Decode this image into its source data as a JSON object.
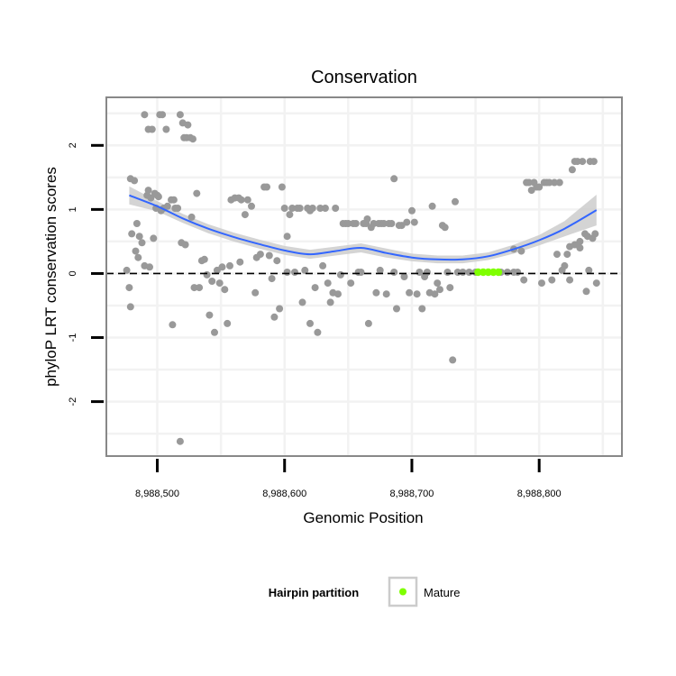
{
  "chart_data": {
    "type": "scatter",
    "title": "Conservation",
    "xlabel": "Genomic Position",
    "ylabel": "phyloP LRT conservation scores",
    "xlim": [
      8988460,
      8988865
    ],
    "ylim": [
      -2.85,
      2.75
    ],
    "x_ticks": [
      8988500,
      8988600,
      8988700,
      8988800
    ],
    "x_tick_labels": [
      "8,988,500",
      "8,988,600",
      "8,988,700",
      "8,988,800"
    ],
    "y_ticks": [
      -2,
      -1,
      0,
      1,
      2
    ],
    "y_tick_labels": [
      "-2",
      "-1",
      "0",
      "1",
      "2"
    ],
    "reference_line": {
      "y": 0,
      "style": "dashed"
    },
    "grid": true,
    "colors": {
      "points": "#999999",
      "smooth_line": "#3366ff",
      "confidence_band": "#cccccc",
      "mature": "#7fff00",
      "panel_border": "#888888",
      "grid": "#f2f2f2"
    },
    "legend": {
      "title": "Hairpin partition",
      "placement": "bottom",
      "entries": [
        {
          "label": "Mature",
          "color": "#7fff00"
        }
      ]
    },
    "series": [
      {
        "name": "Conservation score",
        "points": [
          [
            8988479,
            1.48
          ],
          [
            8988482,
            1.45
          ],
          [
            8988476,
            0.05
          ],
          [
            8988478,
            -0.22
          ],
          [
            8988479,
            -0.52
          ],
          [
            8988480,
            0.62
          ],
          [
            8988483,
            0.35
          ],
          [
            8988484,
            0.78
          ],
          [
            8988486,
            0.58
          ],
          [
            8988485,
            0.25
          ],
          [
            8988488,
            0.48
          ],
          [
            8988490,
            0.12
          ],
          [
            8988492,
            1.22
          ],
          [
            8988493,
            1.3
          ],
          [
            8988495,
            1.18
          ],
          [
            8988494,
            0.1
          ],
          [
            8988497,
            0.55
          ],
          [
            8988490,
            2.48
          ],
          [
            8988493,
            2.25
          ],
          [
            8988496,
            2.25
          ],
          [
            8988502,
            2.48
          ],
          [
            8988504,
            2.48
          ],
          [
            8988507,
            2.25
          ],
          [
            8988498,
            1.25
          ],
          [
            8988500,
            1.22
          ],
          [
            8988501,
            1.2
          ],
          [
            8988499,
            1.02
          ],
          [
            8988503,
            0.98
          ],
          [
            8988505,
            1.02
          ],
          [
            8988508,
            1.05
          ],
          [
            8988511,
            1.15
          ],
          [
            8988513,
            1.15
          ],
          [
            8988514,
            1.02
          ],
          [
            8988516,
            1.02
          ],
          [
            8988512,
            -0.8
          ],
          [
            8988518,
            2.48
          ],
          [
            8988520,
            2.35
          ],
          [
            8988521,
            2.12
          ],
          [
            8988523,
            2.12
          ],
          [
            8988524,
            2.32
          ],
          [
            8988526,
            2.12
          ],
          [
            8988528,
            2.1
          ],
          [
            8988518,
            -2.62
          ],
          [
            8988519,
            0.48
          ],
          [
            8988522,
            0.45
          ],
          [
            8988527,
            0.88
          ],
          [
            8988529,
            -0.22
          ],
          [
            8988531,
            1.25
          ],
          [
            8988533,
            -0.22
          ],
          [
            8988535,
            0.2
          ],
          [
            8988537,
            0.22
          ],
          [
            8988539,
            -0.02
          ],
          [
            8988541,
            -0.65
          ],
          [
            8988543,
            -0.12
          ],
          [
            8988545,
            -0.92
          ],
          [
            8988547,
            0.05
          ],
          [
            8988549,
            -0.15
          ],
          [
            8988551,
            0.1
          ],
          [
            8988553,
            -0.25
          ],
          [
            8988555,
            -0.78
          ],
          [
            8988557,
            0.12
          ],
          [
            8988558,
            1.15
          ],
          [
            8988561,
            1.18
          ],
          [
            8988564,
            1.18
          ],
          [
            8988566,
            1.15
          ],
          [
            8988569,
            0.92
          ],
          [
            8988571,
            1.15
          ],
          [
            8988574,
            1.05
          ],
          [
            8988577,
            -0.3
          ],
          [
            8988578,
            0.25
          ],
          [
            8988581,
            0.3
          ],
          [
            8988584,
            1.35
          ],
          [
            8988586,
            1.35
          ],
          [
            8988588,
            0.28
          ],
          [
            8988590,
            -0.08
          ],
          [
            8988592,
            -0.68
          ],
          [
            8988594,
            0.2
          ],
          [
            8988596,
            -0.55
          ],
          [
            8988598,
            1.35
          ],
          [
            8988600,
            1.02
          ],
          [
            8988602,
            0.02
          ],
          [
            8988604,
            0.92
          ],
          [
            8988606,
            1.02
          ],
          [
            8988608,
            0.02
          ],
          [
            8988610,
            1.02
          ],
          [
            8988612,
            1.02
          ],
          [
            8988614,
            -0.45
          ],
          [
            8988616,
            0.05
          ],
          [
            8988618,
            1.02
          ],
          [
            8988620,
            -0.78
          ],
          [
            8988622,
            1.02
          ],
          [
            8988624,
            -0.22
          ],
          [
            8988626,
            -0.92
          ],
          [
            8988628,
            1.02
          ],
          [
            8988630,
            0.12
          ],
          [
            8988632,
            1.02
          ],
          [
            8988634,
            -0.15
          ],
          [
            8988636,
            -0.45
          ],
          [
            8988638,
            -0.3
          ],
          [
            8988640,
            1.02
          ],
          [
            8988642,
            -0.32
          ],
          [
            8988644,
            -0.02
          ],
          [
            8988646,
            0.78
          ],
          [
            8988648,
            0.78
          ],
          [
            8988650,
            0.78
          ],
          [
            8988652,
            -0.15
          ],
          [
            8988654,
            0.78
          ],
          [
            8988656,
            0.78
          ],
          [
            8988658,
            0.02
          ],
          [
            8988660,
            0.02
          ],
          [
            8988662,
            0.78
          ],
          [
            8988664,
            0.78
          ],
          [
            8988665,
            0.85
          ],
          [
            8988666,
            -0.78
          ],
          [
            8988668,
            0.72
          ],
          [
            8988670,
            0.78
          ],
          [
            8988672,
            -0.3
          ],
          [
            8988674,
            0.78
          ],
          [
            8988676,
            0.78
          ],
          [
            8988678,
            0.78
          ],
          [
            8988680,
            -0.32
          ],
          [
            8988682,
            0.78
          ],
          [
            8988684,
            0.78
          ],
          [
            8988686,
            0.02
          ],
          [
            8988688,
            -0.55
          ],
          [
            8988690,
            0.75
          ],
          [
            8988692,
            0.75
          ],
          [
            8988694,
            -0.05
          ],
          [
            8988696,
            0.8
          ],
          [
            8988698,
            -0.3
          ],
          [
            8988700,
            0.98
          ],
          [
            8988702,
            0.8
          ],
          [
            8988704,
            -0.32
          ],
          [
            8988706,
            0.02
          ],
          [
            8988708,
            -0.55
          ],
          [
            8988710,
            -0.05
          ],
          [
            8988712,
            0.02
          ],
          [
            8988714,
            -0.3
          ],
          [
            8988716,
            1.05
          ],
          [
            8988718,
            -0.32
          ],
          [
            8988720,
            -0.15
          ],
          [
            8988722,
            -0.25
          ],
          [
            8988724,
            0.75
          ],
          [
            8988726,
            0.72
          ],
          [
            8988728,
            0.02
          ],
          [
            8988730,
            -0.22
          ],
          [
            8988732,
            -1.35
          ],
          [
            8988734,
            1.12
          ],
          [
            8988736,
            0.02
          ],
          [
            8988740,
            0.02
          ],
          [
            8988745,
            0.02
          ],
          [
            8988750,
            0.02
          ],
          [
            8988770,
            0.02
          ],
          [
            8988775,
            0.02
          ],
          [
            8988780,
            0.02
          ],
          [
            8988783,
            0.02
          ],
          [
            8988786,
            0.35
          ],
          [
            8988788,
            -0.1
          ],
          [
            8988790,
            1.42
          ],
          [
            8988792,
            1.42
          ],
          [
            8988794,
            1.3
          ],
          [
            8988796,
            1.42
          ],
          [
            8988798,
            1.35
          ],
          [
            8988800,
            1.35
          ],
          [
            8988802,
            -0.15
          ],
          [
            8988804,
            1.42
          ],
          [
            8988806,
            1.42
          ],
          [
            8988808,
            1.42
          ],
          [
            8988810,
            -0.1
          ],
          [
            8988812,
            1.42
          ],
          [
            8988814,
            0.3
          ],
          [
            8988816,
            1.42
          ],
          [
            8988818,
            0.05
          ],
          [
            8988820,
            0.12
          ],
          [
            8988822,
            0.3
          ],
          [
            8988824,
            -0.1
          ],
          [
            8988826,
            1.62
          ],
          [
            8988828,
            1.75
          ],
          [
            8988830,
            1.75
          ],
          [
            8988832,
            0.5
          ],
          [
            8988834,
            1.75
          ],
          [
            8988836,
            0.62
          ],
          [
            8988837,
            -0.28
          ],
          [
            8988838,
            0.58
          ],
          [
            8988839,
            0.05
          ],
          [
            8988840,
            1.75
          ],
          [
            8988842,
            0.55
          ],
          [
            8988843,
            1.75
          ],
          [
            8988844,
            0.62
          ],
          [
            8988845,
            -0.15
          ],
          [
            8988824,
            0.42
          ],
          [
            8988828,
            0.45
          ],
          [
            8988832,
            0.4
          ],
          [
            8988780,
            0.38
          ],
          [
            8988565,
            0.18
          ],
          [
            8988602,
            0.58
          ],
          [
            8988686,
            1.48
          ],
          [
            8988620,
            0.98
          ],
          [
            8988675,
            0.05
          ]
        ]
      },
      {
        "name": "Mature",
        "points": [
          [
            8988752,
            0.02
          ],
          [
            8988756,
            0.02
          ],
          [
            8988760,
            0.02
          ],
          [
            8988764,
            0.02
          ],
          [
            8988768,
            0.02
          ]
        ]
      }
    ],
    "smooth": {
      "x": [
        8988478,
        8988500,
        8988520,
        8988540,
        8988560,
        8988580,
        8988600,
        8988620,
        8988640,
        8988660,
        8988680,
        8988700,
        8988720,
        8988740,
        8988760,
        8988780,
        8988800,
        8988820,
        8988845
      ],
      "y": [
        1.22,
        1.05,
        0.86,
        0.7,
        0.57,
        0.46,
        0.36,
        0.3,
        0.35,
        0.4,
        0.32,
        0.25,
        0.22,
        0.22,
        0.27,
        0.38,
        0.52,
        0.7,
        0.99
      ],
      "se": [
        0.14,
        0.08,
        0.07,
        0.07,
        0.07,
        0.07,
        0.07,
        0.07,
        0.07,
        0.07,
        0.07,
        0.06,
        0.06,
        0.06,
        0.06,
        0.07,
        0.08,
        0.12,
        0.24
      ]
    }
  }
}
